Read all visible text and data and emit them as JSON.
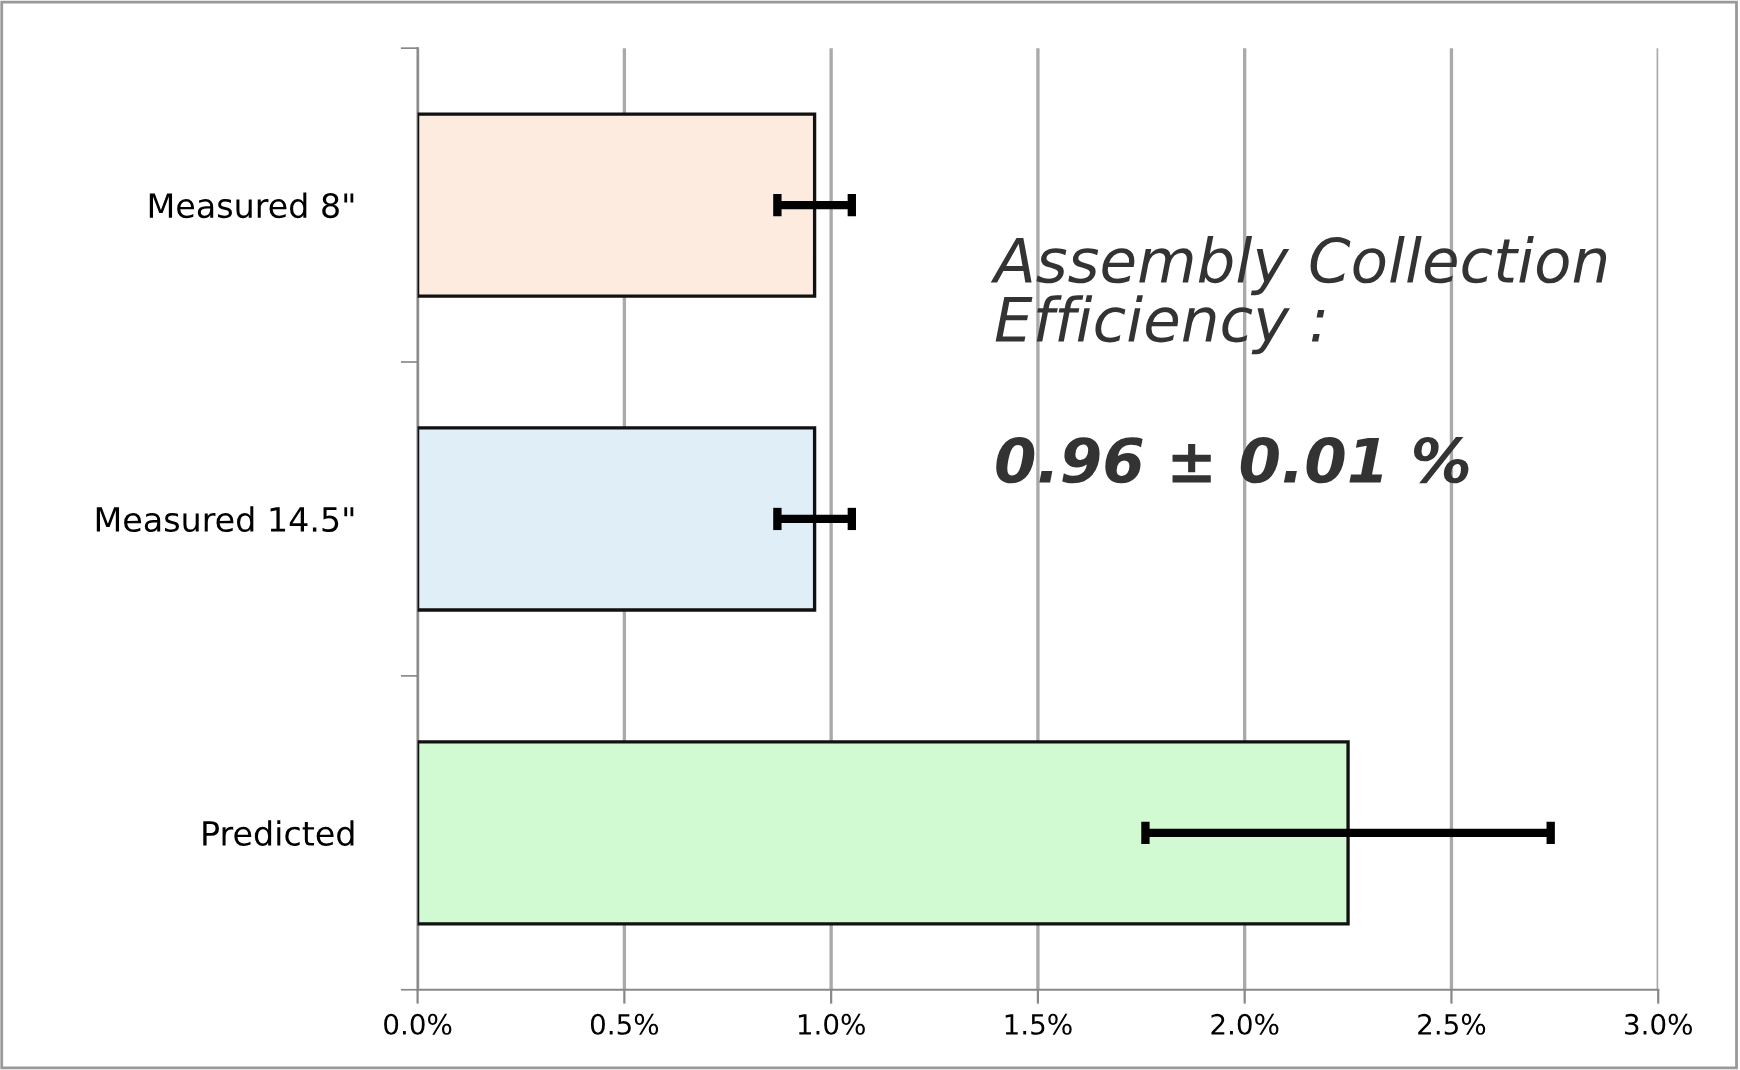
{
  "chart_data": {
    "type": "bar",
    "orientation": "horizontal",
    "categories": [
      "Measured 8\"",
      "Measured 14.5\"",
      "Predicted"
    ],
    "values": [
      0.96,
      0.96,
      2.25
    ],
    "colors": [
      "#fdebdf",
      "#dfeef7",
      "#d2fad2"
    ],
    "errors": [
      0.09,
      0.09,
      0.49
    ],
    "xlim": [
      0,
      3
    ],
    "xticks": [
      {
        "value": 0,
        "label": "0.0%"
      },
      {
        "value": 0.5,
        "label": "0.5%"
      },
      {
        "value": 1,
        "label": "1.0%"
      },
      {
        "value": 1.5,
        "label": "1.5%"
      },
      {
        "value": 2,
        "label": "2.0%"
      },
      {
        "value": 2.5,
        "label": "2.5%"
      },
      {
        "value": 3,
        "label": "3.0%"
      }
    ],
    "grid": "x",
    "legend": false,
    "annotations": [
      "Assembly Collection\nEfficiency :",
      "0.96 ± 0.01 %"
    ]
  }
}
